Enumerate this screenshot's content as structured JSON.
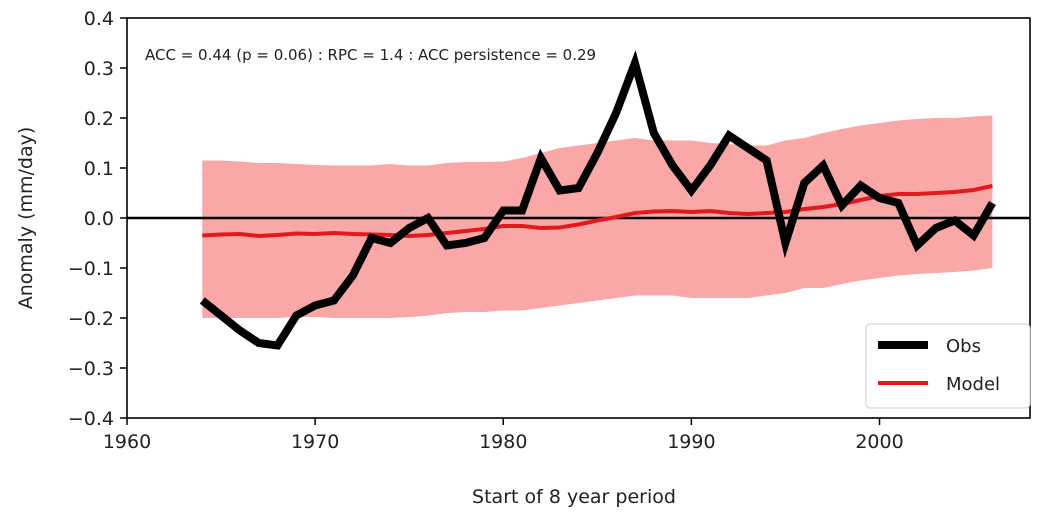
{
  "chart_data": {
    "type": "line",
    "title": "",
    "xlabel": "Start of 8 year period",
    "ylabel": "Anomaly (mm/day)",
    "xlim": [
      1960,
      2008
    ],
    "ylim": [
      -0.4,
      0.4
    ],
    "x_ticks": [
      1960,
      1970,
      1980,
      1990,
      2000
    ],
    "y_ticks": [
      -0.4,
      -0.3,
      -0.2,
      -0.1,
      0.0,
      0.1,
      0.2,
      0.3,
      0.4
    ],
    "x_tick_labels": [
      "1960",
      "1970",
      "1980",
      "1990",
      "2000"
    ],
    "y_tick_labels": [
      "−0.4",
      "−0.3",
      "−0.2",
      "−0.1",
      "0.0",
      "0.1",
      "0.2",
      "0.3",
      "0.4"
    ],
    "annotation": "ACC = 0.44 (p = 0.06) :  RPC = 1.4 : ACC persistence = 0.29",
    "zero_line": true,
    "grid": false,
    "legend_position": "bottom-right",
    "x": [
      1964,
      1965,
      1966,
      1967,
      1968,
      1969,
      1970,
      1971,
      1972,
      1973,
      1974,
      1975,
      1976,
      1977,
      1978,
      1979,
      1980,
      1981,
      1982,
      1983,
      1984,
      1985,
      1986,
      1987,
      1988,
      1989,
      1990,
      1991,
      1992,
      1993,
      1994,
      1995,
      1996,
      1997,
      1998,
      1999,
      2000,
      2001,
      2002,
      2003,
      2004,
      2005,
      2006
    ],
    "series": [
      {
        "name": "Obs",
        "color": "#000000",
        "values": [
          -0.165,
          -0.195,
          -0.225,
          -0.25,
          -0.255,
          -0.195,
          -0.175,
          -0.165,
          -0.115,
          -0.04,
          -0.05,
          -0.02,
          0.0,
          -0.055,
          -0.05,
          -0.04,
          0.015,
          0.015,
          0.12,
          0.055,
          0.06,
          0.13,
          0.21,
          0.31,
          0.17,
          0.105,
          0.055,
          0.105,
          0.165,
          0.14,
          0.115,
          -0.05,
          0.07,
          0.105,
          0.025,
          0.065,
          0.04,
          0.03,
          -0.055,
          -0.02,
          -0.005,
          -0.035,
          0.03
        ]
      },
      {
        "name": "Model",
        "color": "#e31a1c",
        "values": [
          -0.035,
          -0.033,
          -0.032,
          -0.036,
          -0.034,
          -0.031,
          -0.032,
          -0.03,
          -0.032,
          -0.033,
          -0.034,
          -0.036,
          -0.034,
          -0.03,
          -0.026,
          -0.022,
          -0.016,
          -0.016,
          -0.02,
          -0.019,
          -0.013,
          -0.005,
          0.002,
          0.01,
          0.013,
          0.014,
          0.012,
          0.014,
          0.01,
          0.008,
          0.01,
          0.012,
          0.018,
          0.022,
          0.028,
          0.036,
          0.044,
          0.048,
          0.048,
          0.05,
          0.052,
          0.056,
          0.064
        ]
      }
    ],
    "band": {
      "color": "#f9a7a7",
      "upper": [
        0.115,
        0.115,
        0.113,
        0.11,
        0.11,
        0.108,
        0.106,
        0.105,
        0.105,
        0.105,
        0.108,
        0.105,
        0.105,
        0.11,
        0.112,
        0.112,
        0.113,
        0.12,
        0.13,
        0.14,
        0.145,
        0.15,
        0.155,
        0.16,
        0.155,
        0.155,
        0.155,
        0.15,
        0.148,
        0.145,
        0.145,
        0.155,
        0.16,
        0.17,
        0.178,
        0.185,
        0.19,
        0.195,
        0.198,
        0.2,
        0.2,
        0.203,
        0.205
      ],
      "lower": [
        -0.2,
        -0.2,
        -0.2,
        -0.2,
        -0.2,
        -0.198,
        -0.198,
        -0.2,
        -0.2,
        -0.2,
        -0.2,
        -0.198,
        -0.195,
        -0.19,
        -0.188,
        -0.188,
        -0.185,
        -0.185,
        -0.18,
        -0.175,
        -0.17,
        -0.165,
        -0.16,
        -0.155,
        -0.155,
        -0.155,
        -0.16,
        -0.16,
        -0.16,
        -0.16,
        -0.155,
        -0.15,
        -0.14,
        -0.14,
        -0.132,
        -0.125,
        -0.12,
        -0.115,
        -0.112,
        -0.11,
        -0.108,
        -0.105,
        -0.1
      ]
    }
  }
}
